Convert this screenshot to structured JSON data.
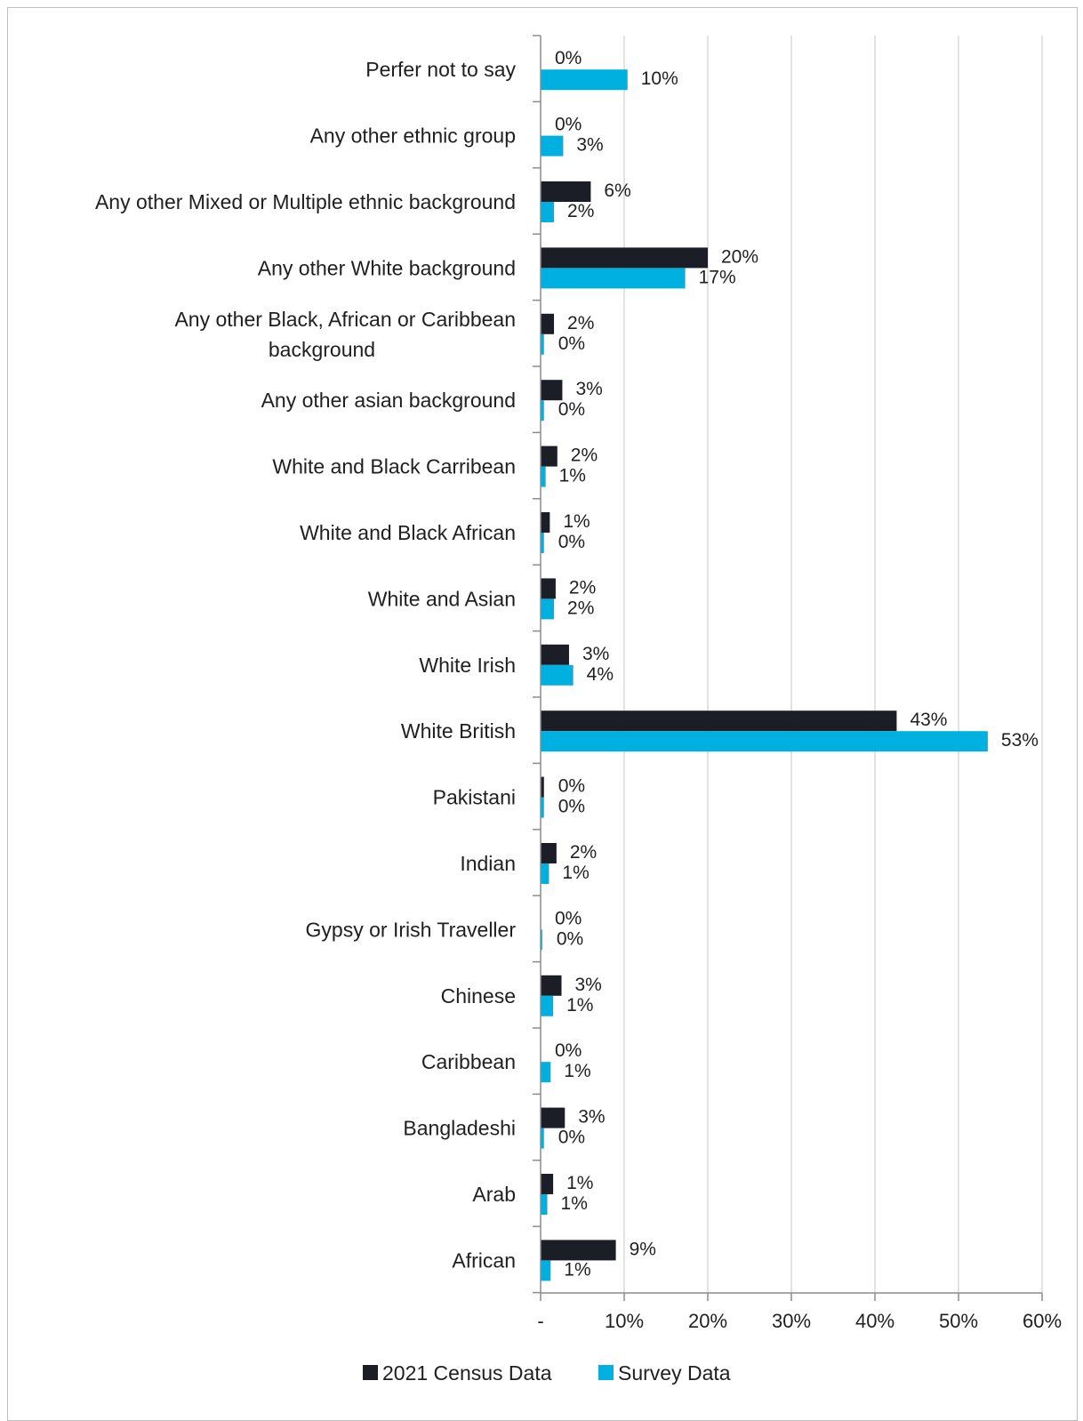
{
  "chart_data": {
    "type": "bar",
    "orientation": "horizontal",
    "categories": [
      "Perfer not to say",
      "Any other ethnic group",
      "Any other Mixed or Multiple ethnic background",
      "Any other White background",
      "Any other Black, African or Caribbean background",
      "Any other asian background",
      "White and Black Carribean",
      "White and Black African",
      "White and Asian",
      "White Irish",
      "White British",
      "Pakistani",
      "Indian",
      "Gypsy or Irish Traveller",
      "Chinese",
      "Caribbean",
      "Bangladeshi",
      "Arab",
      "African"
    ],
    "category_label_lines": [
      [
        "Perfer not to say"
      ],
      [
        "Any other ethnic group"
      ],
      [
        "Any other Mixed or Multiple ethnic background"
      ],
      [
        "Any other White background"
      ],
      [
        "Any other Black, African or Caribbean",
        "background"
      ],
      [
        "Any other asian background"
      ],
      [
        "White and Black Carribean"
      ],
      [
        "White and Black African"
      ],
      [
        "White and Asian"
      ],
      [
        "White Irish"
      ],
      [
        "White British"
      ],
      [
        "Pakistani"
      ],
      [
        "Indian"
      ],
      [
        "Gypsy or Irish Traveller"
      ],
      [
        "Chinese"
      ],
      [
        "Caribbean"
      ],
      [
        "Bangladeshi"
      ],
      [
        "Arab"
      ],
      [
        "African"
      ]
    ],
    "series": [
      {
        "name": "2021 Census Data",
        "color": "#1b1e27",
        "values": [
          0,
          0,
          6,
          20,
          1.6,
          2.6,
          2,
          1.1,
          1.8,
          3.4,
          42.6,
          0.4,
          1.9,
          0,
          2.5,
          0,
          2.9,
          1.5,
          9
        ],
        "labels": [
          "0%",
          "0%",
          "6%",
          "20%",
          "2%",
          "3%",
          "2%",
          "1%",
          "2%",
          "3%",
          "43%",
          "0%",
          "2%",
          "0%",
          "3%",
          "0%",
          "3%",
          "1%",
          "9%"
        ]
      },
      {
        "name": "Survey Data",
        "color": "#00b0e0",
        "values": [
          10.4,
          2.7,
          1.6,
          17.3,
          0.4,
          0.4,
          0.6,
          0.4,
          1.6,
          3.9,
          53.5,
          0.4,
          1,
          0.2,
          1.5,
          1.2,
          0.4,
          0.8,
          1.2
        ],
        "labels": [
          "10%",
          "3%",
          "2%",
          "17%",
          "0%",
          "0%",
          "1%",
          "0%",
          "2%",
          "4%",
          "53%",
          "0%",
          "1%",
          "0%",
          "1%",
          "1%",
          "0%",
          "1%",
          "1%"
        ]
      }
    ],
    "xaxis": {
      "ticks": [
        0,
        10,
        20,
        30,
        40,
        50,
        60
      ],
      "tick_labels": [
        "-",
        "10%",
        "20%",
        "30%",
        "40%",
        "50%",
        "60%"
      ],
      "range": [
        0,
        60
      ]
    },
    "grid": "vertical",
    "legend": "bottom"
  }
}
